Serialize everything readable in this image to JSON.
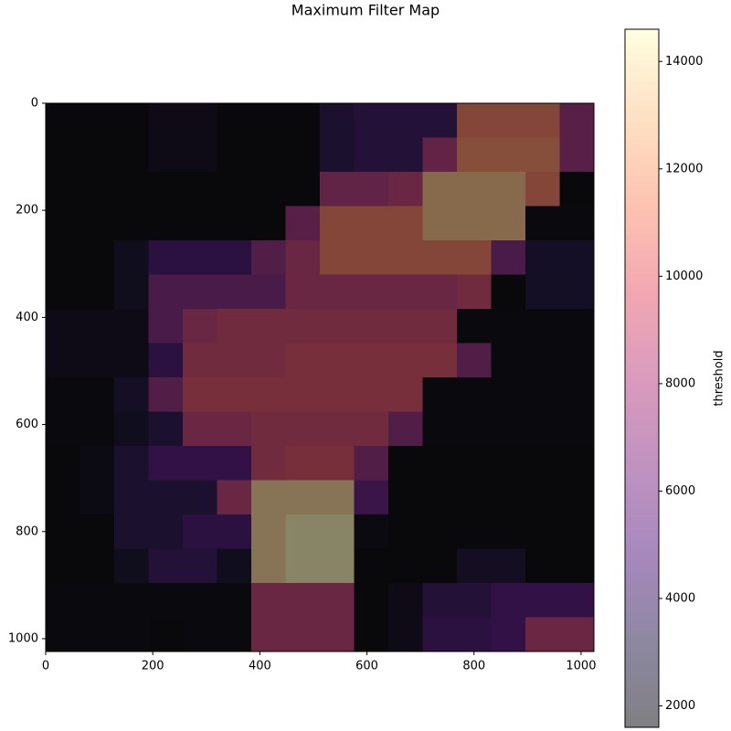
{
  "chart_data": {
    "type": "heatmap",
    "title": "Maximum Filter Map",
    "colormap": "magma",
    "alpha": 0.5,
    "xlim": [
      0,
      1024
    ],
    "ylim": [
      1024,
      0
    ],
    "xticks": [
      0,
      200,
      400,
      600,
      800,
      1000
    ],
    "yticks": [
      0,
      200,
      400,
      600,
      800,
      1000
    ],
    "z": [
      [
        1600,
        1600,
        1600,
        2200,
        2200,
        1600,
        1600,
        1600,
        3500,
        4000,
        4000,
        4000,
        11000,
        11000,
        11000,
        7500
      ],
      [
        1600,
        1600,
        1600,
        2200,
        2200,
        1600,
        1600,
        1600,
        3500,
        4000,
        4000,
        8000,
        11500,
        11500,
        11500,
        7500
      ],
      [
        1600,
        1600,
        1600,
        1700,
        1700,
        1700,
        1700,
        1700,
        8000,
        8000,
        8500,
        13000,
        13000,
        13000,
        11000,
        1600
      ],
      [
        1600,
        1600,
        1600,
        1700,
        1700,
        1700,
        1700,
        7500,
        11000,
        11000,
        11000,
        13000,
        13000,
        13000,
        1800,
        1800
      ],
      [
        1700,
        1700,
        2500,
        4500,
        4500,
        4500,
        7000,
        8500,
        11000,
        11000,
        11000,
        11000,
        11000,
        6500,
        3000,
        3000
      ],
      [
        1700,
        1700,
        2500,
        6500,
        6500,
        6500,
        6500,
        8500,
        8500,
        8500,
        8500,
        8500,
        9000,
        1600,
        3000,
        3000
      ],
      [
        2200,
        2200,
        2200,
        6500,
        8500,
        9000,
        9000,
        9000,
        9000,
        9000,
        9000,
        9000,
        1800,
        1800,
        1800,
        1800
      ],
      [
        2200,
        2200,
        2200,
        4500,
        9000,
        9000,
        9000,
        9500,
        9500,
        9500,
        9500,
        9500,
        7000,
        1800,
        1800,
        1800
      ],
      [
        1800,
        1800,
        3000,
        7000,
        9500,
        9500,
        9500,
        9500,
        9500,
        9500,
        9500,
        1800,
        1800,
        1800,
        1800,
        1800
      ],
      [
        1800,
        1800,
        2500,
        3500,
        8500,
        8500,
        9000,
        9000,
        9000,
        9000,
        7000,
        1800,
        1800,
        1800,
        1800,
        1800
      ],
      [
        1600,
        2000,
        3500,
        5000,
        5000,
        5000,
        9000,
        9500,
        9500,
        7000,
        1700,
        1700,
        1700,
        1700,
        1700,
        1700
      ],
      [
        1600,
        2000,
        3500,
        3500,
        3500,
        8500,
        13500,
        13500,
        13500,
        5500,
        1700,
        1700,
        1700,
        1700,
        1700,
        1700
      ],
      [
        1600,
        1600,
        3500,
        3500,
        4500,
        4500,
        13500,
        14500,
        14500,
        1900,
        1700,
        1700,
        1600,
        1700,
        1700,
        1700
      ],
      [
        1600,
        1600,
        2500,
        4000,
        4000,
        2500,
        13500,
        14500,
        14500,
        1600,
        1700,
        1700,
        2800,
        2800,
        1700,
        1600
      ],
      [
        1800,
        1800,
        1800,
        1800,
        1800,
        1800,
        8500,
        8500,
        8500,
        1600,
        2200,
        4000,
        4000,
        5000,
        5000,
        5000
      ],
      [
        1800,
        1800,
        1800,
        1700,
        1800,
        1800,
        8500,
        8500,
        8500,
        1600,
        2200,
        4500,
        4500,
        5000,
        8500,
        8500
      ]
    ],
    "colorbar": {
      "label": "threshold",
      "lim": [
        1600,
        14600
      ],
      "ticks": [
        2000,
        4000,
        6000,
        8000,
        10000,
        12000,
        14000
      ]
    }
  }
}
